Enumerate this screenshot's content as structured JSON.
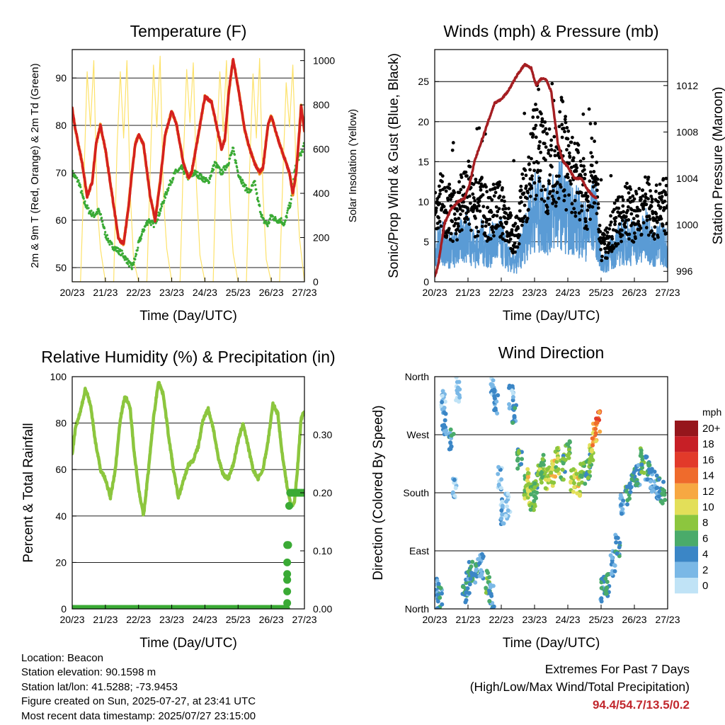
{
  "footer": {
    "location": "Location: Beacon",
    "elevation": "Station elevation: 90.1598 m",
    "latlon": "Station lat/lon: 41.5288; -73.9453",
    "created": "Figure created on Sun, 2025-07-27, at 23:41 UTC",
    "recent": "Most recent data timestamp: 2025/07/27 23:15:00"
  },
  "extremes": {
    "title": "Extremes For Past 7 Days",
    "subtitle": "(High/Low/Max Wind/Total Precipitation)",
    "values": "94.4/54.7/13.5/0.2"
  },
  "colors": {
    "temp_2m": "#2b9a3b",
    "temp_9m_orange": "#f0901e",
    "temp_9m_red": "#d42020",
    "dewpoint": "#3aaa35",
    "insolation": "#fde26a",
    "wind_sonic": "#5a9bd5",
    "gust": "#000000",
    "pressure": "#a51e22",
    "rh": "#8cc63e",
    "precip": "#3aaa35"
  },
  "chart_data": [
    {
      "type": "line",
      "title": "Temperature (F)",
      "xlabel": "Time (Day/UTC)",
      "ylabel": "2m & 9m T (Red, Orange) & 2m Td (Green)",
      "y2label": "Solar Insolation (Yellow)",
      "x_ticks": [
        "20/23",
        "21/23",
        "22/23",
        "23/23",
        "24/23",
        "25/23",
        "26/23",
        "27/23"
      ],
      "xlim": [
        0,
        7
      ],
      "ylim": [
        47,
        96
      ],
      "y_ticks": [
        50,
        60,
        70,
        80,
        90
      ],
      "y2lim": [
        0,
        1050
      ],
      "y2_ticks": [
        0,
        200,
        400,
        600,
        800,
        1000
      ],
      "grid": true,
      "series": [
        {
          "name": "2m T",
          "axis": "left",
          "x": [
            0,
            0.1,
            0.3,
            0.45,
            0.6,
            0.72,
            0.85,
            1.0,
            1.25,
            1.4,
            1.55,
            1.7,
            1.8,
            1.9,
            2.0,
            2.15,
            2.35,
            2.5,
            2.65,
            2.8,
            3.0,
            3.15,
            3.35,
            3.5,
            3.6,
            3.75,
            3.85,
            4.0,
            4.2,
            4.35,
            4.5,
            4.6,
            4.72,
            4.85,
            5.0,
            5.2,
            5.35,
            5.5,
            5.65,
            5.75,
            5.9,
            6.0,
            6.25,
            6.4,
            6.55,
            6.65,
            6.75,
            6.83,
            6.9,
            7.0
          ],
          "y": [
            83.5,
            79,
            72,
            65,
            68,
            76,
            80,
            75,
            63,
            56,
            55,
            63,
            70,
            76,
            78,
            76,
            65,
            60,
            68,
            78,
            83,
            80,
            72,
            69,
            70,
            76,
            80,
            86,
            85,
            80,
            75,
            77,
            87,
            94,
            88,
            79,
            75,
            72,
            70,
            71,
            80,
            82,
            76,
            73,
            70,
            65.5,
            70,
            77,
            84,
            79
          ]
        },
        {
          "name": "2m Td",
          "axis": "left",
          "x": [
            0,
            0.2,
            0.35,
            0.5,
            0.65,
            0.8,
            0.9,
            1.0,
            1.15,
            1.3,
            1.5,
            1.7,
            1.8,
            1.9,
            2.0,
            2.15,
            2.3,
            2.45,
            2.6,
            2.75,
            2.9,
            3.1,
            3.3,
            3.5,
            3.7,
            3.9,
            4.1,
            4.3,
            4.5,
            4.7,
            4.85,
            5.0,
            5.2,
            5.35,
            5.5,
            5.6,
            5.75,
            5.9,
            6.0,
            6.15,
            6.3,
            6.4,
            6.5,
            6.6,
            6.7,
            6.8,
            6.9,
            7.0
          ],
          "y": [
            70,
            68,
            64,
            62,
            61,
            62,
            60,
            57,
            55,
            54,
            53,
            51,
            50,
            52,
            55,
            58,
            60,
            59,
            61,
            64,
            67,
            70,
            71,
            69,
            70,
            69,
            68,
            72,
            70,
            72,
            75,
            70,
            67,
            66,
            68,
            64,
            60,
            59,
            61,
            60,
            60,
            59,
            62,
            64,
            70,
            73,
            74,
            76
          ]
        },
        {
          "name": "Solar insolation",
          "axis": "right",
          "x": [
            0,
            0.25,
            0.35,
            0.45,
            0.55,
            0.65,
            0.75,
            0.85,
            1.0,
            1.25,
            1.35,
            1.45,
            1.55,
            1.65,
            1.75,
            1.85,
            2.0,
            2.25,
            2.35,
            2.45,
            2.55,
            2.65,
            2.75,
            2.85,
            3.0,
            3.25,
            3.35,
            3.45,
            3.55,
            3.65,
            3.75,
            3.85,
            4.0,
            4.25,
            4.35,
            4.45,
            4.55,
            4.65,
            4.75,
            4.85,
            5.0,
            5.25,
            5.35,
            5.45,
            5.55,
            5.65,
            5.75,
            5.85,
            6.0,
            6.25,
            6.35,
            6.45,
            6.55,
            6.65,
            6.75,
            6.85,
            7.0
          ],
          "y": [
            0,
            0,
            450,
            950,
            700,
            1000,
            350,
            150,
            0,
            0,
            600,
            950,
            650,
            1000,
            400,
            100,
            0,
            0,
            500,
            980,
            700,
            1020,
            380,
            150,
            0,
            0,
            550,
            960,
            720,
            990,
            420,
            120,
            0,
            0,
            600,
            950,
            680,
            1000,
            360,
            130,
            0,
            0,
            520,
            940,
            650,
            1010,
            400,
            100,
            0,
            0,
            480,
            900,
            700,
            980,
            500,
            200,
            0
          ]
        }
      ]
    },
    {
      "type": "scatter",
      "title": "Winds (mph) & Pressure (mb)",
      "xlabel": "Time (Day/UTC)",
      "ylabel": "Sonic/Prop Wind & Gust (Blue, Black)",
      "y2label": "Station Pressure (Maroon)",
      "x_ticks": [
        "20/23",
        "21/23",
        "22/23",
        "23/23",
        "24/23",
        "25/23",
        "26/23",
        "27/23"
      ],
      "xlim": [
        0,
        7
      ],
      "ylim": [
        0,
        29
      ],
      "y_ticks": [
        0,
        5,
        10,
        15,
        20,
        25
      ],
      "y2lim": [
        995.1,
        1015.1
      ],
      "y2_ticks": [
        996,
        1000,
        1004,
        1008,
        1012
      ],
      "grid": true,
      "series": [
        {
          "name": "Gust",
          "axis": "left",
          "x": [
            0,
            0.2,
            0.4,
            0.6,
            0.8,
            1.0,
            1.2,
            1.4,
            1.6,
            1.8,
            2.0,
            2.2,
            2.4,
            2.6,
            2.8,
            3.0,
            3.2,
            3.4,
            3.6,
            3.8,
            4.0,
            4.2,
            4.4,
            4.6,
            4.8,
            5.0,
            5.2,
            5.4,
            5.6,
            5.8,
            6.0,
            6.2,
            6.4,
            6.6,
            6.8,
            7.0
          ],
          "y": [
            8,
            10,
            9,
            8,
            10,
            11,
            9,
            10,
            8,
            9,
            9,
            7,
            5,
            9,
            13,
            16,
            15,
            14,
            15,
            17,
            14,
            13,
            12,
            10,
            16,
            4,
            5,
            7,
            8,
            9,
            8,
            9,
            10,
            8,
            10,
            9
          ]
        },
        {
          "name": "Sonic/Prop wind",
          "axis": "left",
          "x": [
            0,
            0.2,
            0.4,
            0.6,
            0.8,
            1.0,
            1.2,
            1.4,
            1.6,
            1.8,
            2.0,
            2.2,
            2.4,
            2.6,
            2.8,
            3.0,
            3.2,
            3.4,
            3.6,
            3.8,
            4.0,
            4.2,
            4.4,
            4.6,
            4.8,
            5.0,
            5.2,
            5.4,
            5.6,
            5.8,
            6.0,
            6.2,
            6.4,
            6.6,
            6.8,
            7.0
          ],
          "y": [
            4,
            5,
            4,
            4,
            5,
            6,
            4,
            5,
            4,
            5,
            5,
            3,
            2,
            4,
            7,
            9,
            8,
            8,
            9,
            10,
            8,
            8,
            7,
            6,
            9,
            2,
            3,
            4,
            5,
            5,
            5,
            5,
            6,
            4,
            5,
            4
          ]
        },
        {
          "name": "Station pressure",
          "axis": "right",
          "x": [
            0,
            0.1,
            0.3,
            0.5,
            0.7,
            0.9,
            1.05,
            1.2,
            1.5,
            1.8,
            2.0,
            2.2,
            2.5,
            2.7,
            2.9,
            3.05,
            3.2,
            3.35,
            3.5,
            3.7,
            3.85,
            4.0,
            4.2,
            4.4,
            4.6,
            4.75,
            4.85
          ],
          "y": [
            995.5,
            996.5,
            1000.2,
            1001.4,
            1002,
            1002.3,
            1003.5,
            1005.5,
            1008,
            1010.5,
            1010.8,
            1011.5,
            1013,
            1013.8,
            1013.5,
            1012,
            1012.6,
            1012.5,
            1011.5,
            1007,
            1005.5,
            1005,
            1004,
            1004,
            1003,
            1002.5,
            1002.3
          ]
        }
      ]
    },
    {
      "type": "line",
      "title": "Relative Humidity (%) & Precipitation (in)",
      "xlabel": "Time (Day/UTC)",
      "ylabel": "Percent & Total Rainfall",
      "x_ticks": [
        "20/23",
        "21/23",
        "22/23",
        "23/23",
        "24/23",
        "25/23",
        "26/23",
        "27/23"
      ],
      "xlim": [
        0,
        7
      ],
      "ylim": [
        0,
        100
      ],
      "y_ticks": [
        0,
        20,
        40,
        60,
        80,
        100
      ],
      "y2lim": [
        0,
        0.4
      ],
      "y2_ticks": [
        "0.00",
        "0.10",
        "0.20",
        "0.30"
      ],
      "grid": true,
      "series": [
        {
          "name": "Relative humidity",
          "axis": "left",
          "x": [
            0,
            0.1,
            0.25,
            0.4,
            0.55,
            0.7,
            0.85,
            1.0,
            1.15,
            1.3,
            1.45,
            1.6,
            1.75,
            1.85,
            2.0,
            2.15,
            2.3,
            2.45,
            2.6,
            2.75,
            2.9,
            3.05,
            3.2,
            3.35,
            3.5,
            3.65,
            3.8,
            3.95,
            4.1,
            4.25,
            4.4,
            4.55,
            4.7,
            4.85,
            5.0,
            5.15,
            5.3,
            5.45,
            5.6,
            5.75,
            5.9,
            6.05,
            6.2,
            6.3,
            6.45,
            6.6,
            6.7,
            6.8,
            6.9,
            7.0
          ],
          "y": [
            67,
            78,
            85,
            95,
            88,
            72,
            60,
            56,
            48,
            60,
            82,
            92,
            86,
            70,
            52,
            40,
            60,
            82,
            98,
            92,
            75,
            60,
            48,
            55,
            62,
            64,
            70,
            82,
            86,
            78,
            65,
            58,
            56,
            62,
            72,
            80,
            70,
            60,
            56,
            60,
            72,
            88,
            84,
            70,
            55,
            44,
            46,
            62,
            82,
            85
          ]
        },
        {
          "name": "Total rainfall",
          "axis": "right",
          "x": [
            0,
            0.5,
            1.0,
            1.5,
            2.0,
            2.5,
            3.0,
            3.5,
            4.0,
            4.5,
            5.0,
            5.5,
            6.0,
            6.45,
            6.46,
            6.47,
            6.48,
            6.49,
            6.5,
            6.51,
            6.55,
            6.7,
            7.0
          ],
          "y": [
            0,
            0,
            0,
            0,
            0,
            0,
            0,
            0,
            0,
            0,
            0,
            0,
            0,
            0,
            0.01,
            0.03,
            0.05,
            0.06,
            0.08,
            0.11,
            0.2,
            0.2,
            0.2
          ]
        }
      ]
    },
    {
      "type": "scatter",
      "title": "Wind Direction",
      "xlabel": "Time (Day/UTC)",
      "ylabel": "Direction (Colored By Speed)",
      "x_ticks": [
        "20/23",
        "21/23",
        "22/23",
        "23/23",
        "24/23",
        "25/23",
        "26/23",
        "27/23"
      ],
      "xlim": [
        0,
        7
      ],
      "ylim": [
        0,
        360
      ],
      "y_ticks": [
        "North",
        "East",
        "South",
        "West",
        "North"
      ],
      "grid": true,
      "colorbar_title": "mph",
      "colorbar_labels": [
        "20+",
        "18",
        "16",
        "14",
        "12",
        "10",
        "8",
        "6",
        "4",
        "2",
        "0"
      ],
      "colorbar_colors": [
        "#96161c",
        "#c71f26",
        "#e23a2a",
        "#ef6b2c",
        "#f7a842",
        "#e3df59",
        "#8cc63e",
        "#4aab6a",
        "#3b86c6",
        "#7ab8e6",
        "#c0e3f6"
      ],
      "series": [
        {
          "name": "Direction",
          "x": [
            0.05,
            0.15,
            0.25,
            0.3,
            0.5,
            0.6,
            0.7,
            0.9,
            1.0,
            1.1,
            1.25,
            1.4,
            1.6,
            1.7,
            1.75,
            1.85,
            1.95,
            2.05,
            2.2,
            2.3,
            2.4,
            2.55,
            2.7,
            2.8,
            2.85,
            2.95,
            3.05,
            3.15,
            3.25,
            3.4,
            3.55,
            3.7,
            3.85,
            4.0,
            4.15,
            4.3,
            4.45,
            4.6,
            4.7,
            4.8,
            4.9,
            5.05,
            5.2,
            5.35,
            5.5,
            5.65,
            5.8,
            5.95,
            6.1,
            6.25,
            6.4,
            6.55,
            6.7,
            6.85
          ],
          "y": [
            30,
            20,
            320,
            290,
            260,
            190,
            340,
            30,
            40,
            55,
            60,
            65,
            40,
            20,
            350,
            320,
            200,
            150,
            160,
            330,
            300,
            230,
            190,
            200,
            180,
            170,
            190,
            210,
            220,
            200,
            210,
            230,
            220,
            240,
            200,
            190,
            210,
            220,
            240,
            270,
            290,
            30,
            40,
            70,
            100,
            160,
            180,
            200,
            210,
            230,
            220,
            200,
            190,
            180
          ],
          "speeds": [
            3,
            4,
            2,
            3,
            4,
            2,
            1,
            5,
            4,
            5,
            4,
            3,
            6,
            4,
            2,
            3,
            2,
            2,
            1,
            2,
            4,
            6,
            8,
            10,
            9,
            7,
            6,
            8,
            7,
            9,
            10,
            8,
            6,
            7,
            9,
            10,
            7,
            6,
            8,
            12,
            14,
            4,
            5,
            3,
            4,
            3,
            6,
            5,
            4,
            6,
            4,
            3,
            4,
            5
          ]
        }
      ]
    }
  ]
}
